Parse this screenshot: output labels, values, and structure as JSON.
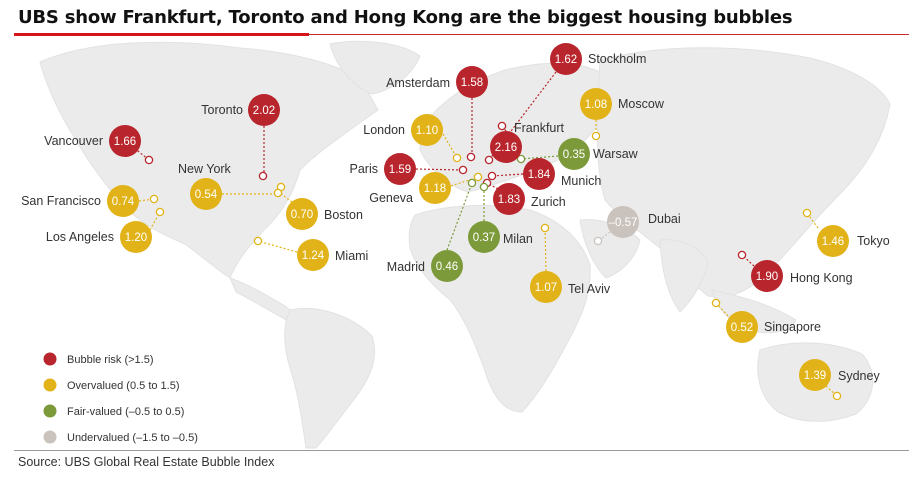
{
  "title": "UBS show Frankfurt, Toronto and Hong Kong are the biggest housing bubbles",
  "source": "Source: UBS Global Real Estate Bubble Index",
  "colors": {
    "bubble_risk": "#b8252c",
    "overvalued": "#e2b318",
    "fair_valued": "#7d9a3a",
    "undervalued": "#c9c2bd",
    "map_land": "#ececec",
    "title_rule": "#d6141c"
  },
  "legend": [
    {
      "label": "Bubble risk (>1.5)",
      "category": "bubble_risk"
    },
    {
      "label": "Overvalued (0.5 to 1.5)",
      "category": "overvalued"
    },
    {
      "label": "Fair-valued (–0.5 to 0.5)",
      "category": "fair_valued"
    },
    {
      "label": "Undervalued (–1.5 to –0.5)",
      "category": "undervalued"
    }
  ],
  "cities": [
    {
      "name": "Vancouver",
      "value": "1.66",
      "category": "bubble_risk"
    },
    {
      "name": "Toronto",
      "value": "2.02",
      "category": "bubble_risk"
    },
    {
      "name": "New York",
      "value": "0.54",
      "category": "overvalued"
    },
    {
      "name": "Boston",
      "value": "0.70",
      "category": "overvalued"
    },
    {
      "name": "San Francisco",
      "value": "0.74",
      "category": "overvalued"
    },
    {
      "name": "Los Angeles",
      "value": "1.20",
      "category": "overvalued"
    },
    {
      "name": "Miami",
      "value": "1.24",
      "category": "overvalued"
    },
    {
      "name": "Amsterdam",
      "value": "1.58",
      "category": "bubble_risk"
    },
    {
      "name": "Stockholm",
      "value": "1.62",
      "category": "bubble_risk"
    },
    {
      "name": "Moscow",
      "value": "1.08",
      "category": "overvalued"
    },
    {
      "name": "London",
      "value": "1.10",
      "category": "overvalued"
    },
    {
      "name": "Frankfurt",
      "value": "2.16",
      "category": "bubble_risk"
    },
    {
      "name": "Warsaw",
      "value": "0.35",
      "category": "fair_valued"
    },
    {
      "name": "Paris",
      "value": "1.59",
      "category": "bubble_risk"
    },
    {
      "name": "Munich",
      "value": "1.84",
      "category": "bubble_risk"
    },
    {
      "name": "Geneva",
      "value": "1.18",
      "category": "overvalued"
    },
    {
      "name": "Zurich",
      "value": "1.83",
      "category": "bubble_risk"
    },
    {
      "name": "Dubai",
      "value": "–0.57",
      "category": "undervalued"
    },
    {
      "name": "Milan",
      "value": "0.37",
      "category": "fair_valued"
    },
    {
      "name": "Madrid",
      "value": "0.46",
      "category": "fair_valued"
    },
    {
      "name": "Tel Aviv",
      "value": "1.07",
      "category": "overvalued"
    },
    {
      "name": "Tokyo",
      "value": "1.46",
      "category": "overvalued"
    },
    {
      "name": "Hong Kong",
      "value": "1.90",
      "category": "bubble_risk"
    },
    {
      "name": "Singapore",
      "value": "0.52",
      "category": "overvalued"
    },
    {
      "name": "Sydney",
      "value": "1.39",
      "category": "overvalued"
    }
  ]
}
